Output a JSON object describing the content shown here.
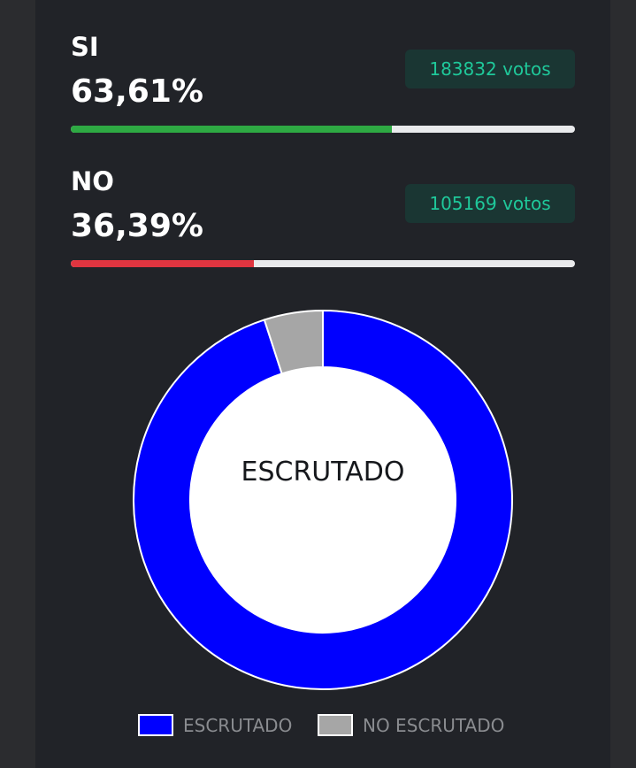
{
  "options": [
    {
      "label": "SI",
      "percent": "63,61%",
      "votes": "183832 votos",
      "fraction": 0.6361,
      "color": "#2ea943"
    },
    {
      "label": "NO",
      "percent": "36,39%",
      "votes": "105169 votos",
      "fraction": 0.3639,
      "color": "#e03540"
    }
  ],
  "chart_data": {
    "type": "pie",
    "title": "ESCRUTADO",
    "categories": [
      "ESCRUTADO",
      "NO ESCRUTADO"
    ],
    "values": [
      95,
      5
    ],
    "colors": [
      "#0000ff",
      "#a6a6a6"
    ],
    "legend": "bottom"
  }
}
